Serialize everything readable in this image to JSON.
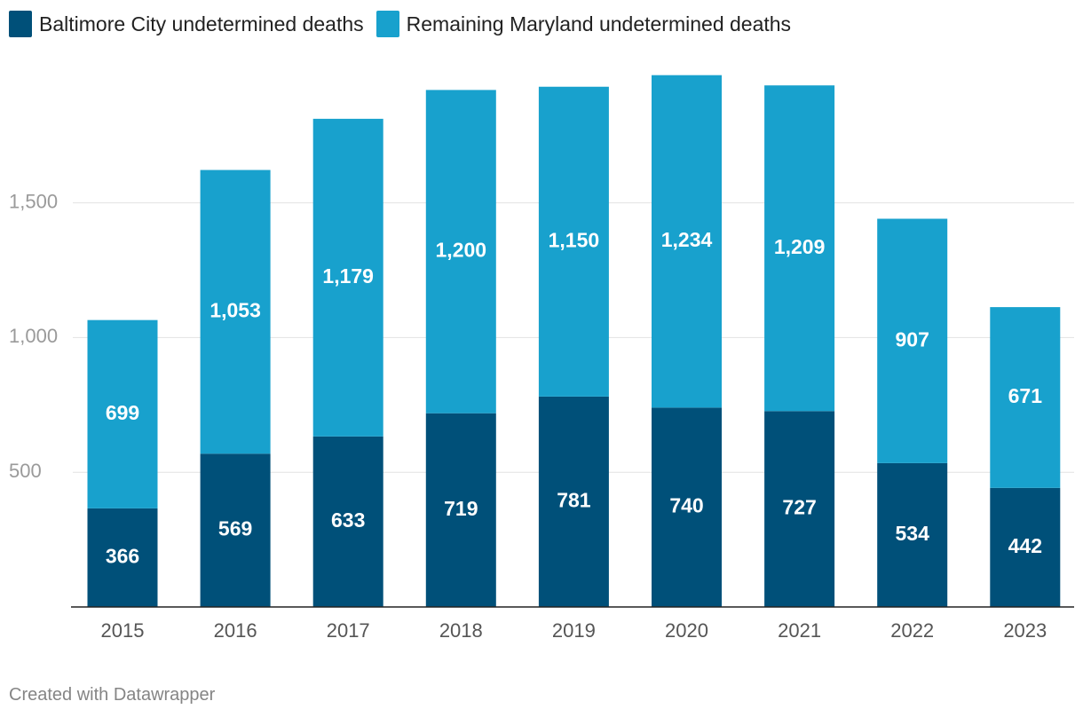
{
  "colors": {
    "baltimore": "#005079",
    "remaining": "#18a1cd",
    "grid": "#e2e2e2",
    "axis": "#222222",
    "tick_text": "#9a9a9a",
    "year_text": "#555555",
    "credit": "#858585"
  },
  "legend": [
    {
      "label": "Baltimore City undetermined deaths",
      "color_key": "baltimore"
    },
    {
      "label": "Remaining Maryland undetermined deaths",
      "color_key": "remaining"
    }
  ],
  "chart_data": {
    "type": "bar",
    "stacked": true,
    "categories": [
      "2015",
      "2016",
      "2017",
      "2018",
      "2019",
      "2020",
      "2021",
      "2022",
      "2023"
    ],
    "series": [
      {
        "name": "Baltimore City undetermined deaths",
        "values": [
          366,
          569,
          633,
          719,
          781,
          740,
          727,
          534,
          442
        ],
        "value_labels": [
          "366",
          "569",
          "633",
          "719",
          "781",
          "740",
          "727",
          "534",
          "442"
        ]
      },
      {
        "name": "Remaining Maryland undetermined deaths",
        "values": [
          699,
          1053,
          1179,
          1200,
          1150,
          1234,
          1209,
          907,
          671
        ],
        "value_labels": [
          "699",
          "1,053",
          "1,179",
          "1,200",
          "1,150",
          "1,234",
          "1,209",
          "907",
          "671"
        ]
      }
    ],
    "yticks": [
      500,
      1000,
      1500
    ],
    "ytick_labels": [
      "500",
      "1,000",
      "1,500"
    ],
    "ylim": [
      0,
      2000
    ],
    "grid": true,
    "legend_position": "top-left",
    "title": "",
    "xlabel": "",
    "ylabel": ""
  },
  "footer": {
    "credit": "Created with Datawrapper"
  }
}
